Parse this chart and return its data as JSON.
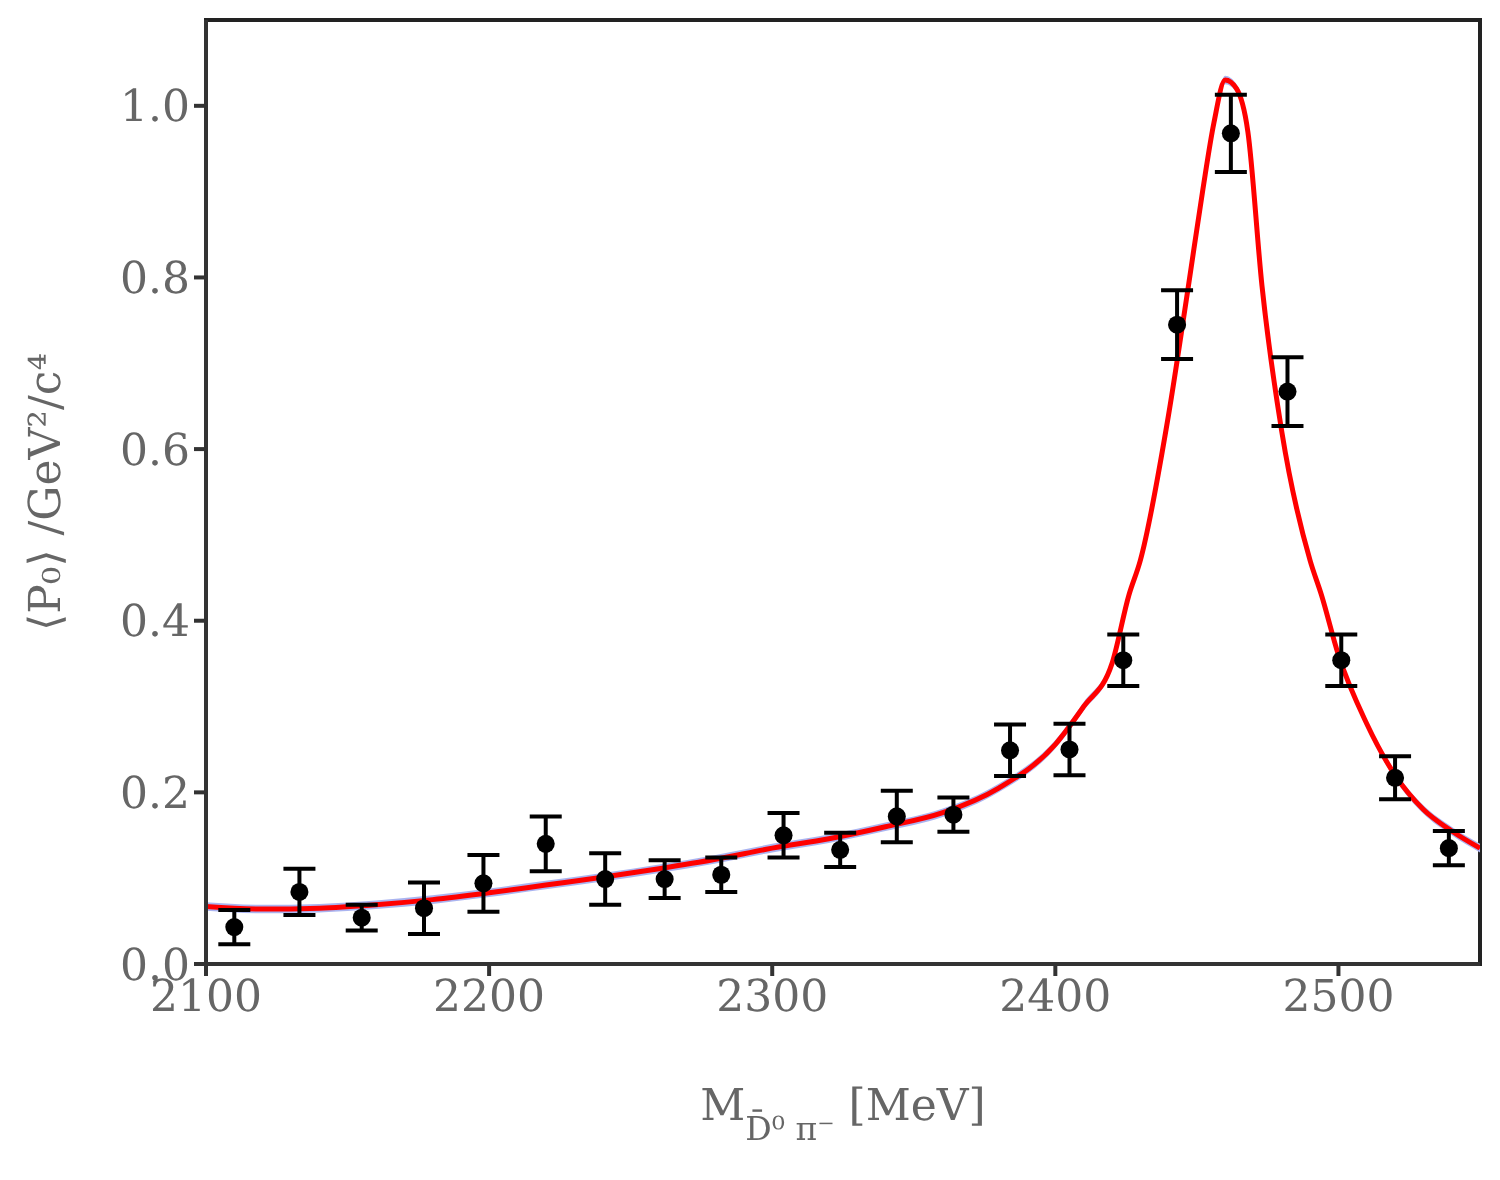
{
  "chart_data": {
    "type": "scatter",
    "xlabel": "M$_{D̄⁰ π⁻}$ [MeV]",
    "ylabel": "⟨P₀⟩ /GeV²/c⁴",
    "xlim": [
      2100,
      2550
    ],
    "xticks": [
      2100,
      2200,
      2300,
      2400,
      2500
    ],
    "ylim": [
      0,
      1.1
    ],
    "yticks": [
      {
        "value": 0,
        "label": "0.0"
      },
      {
        "value": 0.2,
        "label": "0.2"
      },
      {
        "value": 0.4,
        "label": "0.4"
      },
      {
        "value": 0.6,
        "label": "0.6"
      },
      {
        "value": 0.8,
        "label": "0.8"
      },
      {
        "value": 1,
        "label": "1.0"
      }
    ],
    "series": [
      {
        "type": "line",
        "color": "#ff0000",
        "marker": "none",
        "line_style": "solid",
        "x": [
          2100,
          2120,
          2140,
          2160,
          2180,
          2200,
          2220,
          2240,
          2260,
          2280,
          2300,
          2320,
          2340,
          2360,
          2380,
          2400,
          2410,
          2420,
          2426,
          2430,
          2440,
          2447,
          2452,
          2456,
          2460,
          2464,
          2468,
          2473,
          2480,
          2490,
          2494,
          2500,
          2510,
          2520,
          2530,
          2540,
          2550
        ],
        "values": [
          0.067,
          0.064,
          0.065,
          0.069,
          0.075,
          0.083,
          0.092,
          0.101,
          0.111,
          0.122,
          0.135,
          0.146,
          0.16,
          0.176,
          0.205,
          0.256,
          0.3,
          0.35,
          0.43,
          0.47,
          0.64,
          0.79,
          0.9,
          0.98,
          1.03,
          1.02,
          0.97,
          0.79,
          0.62,
          0.47,
          0.43,
          0.36,
          0.28,
          0.22,
          0.18,
          0.155,
          0.135
        ],
        "lower": [
          0.062,
          0.059,
          0.06,
          0.064,
          0.07,
          0.078,
          0.087,
          0.096,
          0.106,
          0.117,
          0.13,
          0.141,
          0.155,
          0.171,
          0.2,
          0.251,
          0.295,
          0.345,
          0.425,
          0.465,
          0.635,
          0.785,
          0.895,
          0.975,
          1.025,
          1.015,
          0.965,
          0.785,
          0.615,
          0.465,
          0.425,
          0.355,
          0.275,
          0.215,
          0.175,
          0.15,
          0.13
        ],
        "upper": [
          0.072,
          0.069,
          0.07,
          0.074,
          0.08,
          0.088,
          0.097,
          0.106,
          0.116,
          0.127,
          0.14,
          0.151,
          0.165,
          0.181,
          0.21,
          0.261,
          0.305,
          0.355,
          0.435,
          0.475,
          0.645,
          0.795,
          0.905,
          0.985,
          1.035,
          1.025,
          0.975,
          0.795,
          0.625,
          0.475,
          0.435,
          0.365,
          0.285,
          0.225,
          0.185,
          0.16,
          0.14
        ]
      },
      {
        "color": "#000000",
        "marker": "circle",
        "x": [
          2110,
          2133,
          2155,
          2177,
          2198,
          2220,
          2241,
          2262,
          2282,
          2304,
          2324,
          2344,
          2364,
          2384,
          2405,
          2424,
          2443,
          2462,
          2482,
          2501,
          2520,
          2539
        ],
        "values": [
          0.043,
          0.084,
          0.054,
          0.065,
          0.094,
          0.14,
          0.099,
          0.099,
          0.104,
          0.15,
          0.133,
          0.172,
          0.174,
          0.249,
          0.25,
          0.354,
          0.745,
          0.968,
          0.667,
          0.354,
          0.217,
          0.135
        ],
        "errors": [
          0.02,
          0.027,
          0.015,
          0.03,
          0.033,
          0.032,
          0.03,
          0.022,
          0.02,
          0.026,
          0.02,
          0.03,
          0.02,
          0.03,
          0.03,
          0.03,
          0.04,
          0.045,
          0.04,
          0.03,
          0.025,
          0.02
        ]
      }
    ]
  }
}
